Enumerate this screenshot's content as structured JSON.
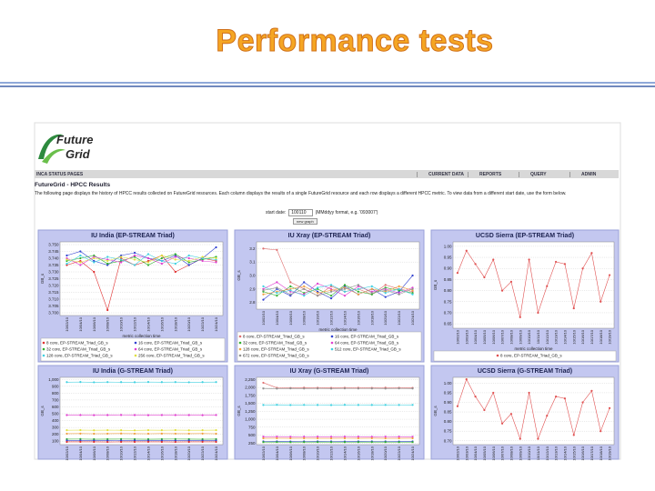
{
  "slide_title": "Performance tests",
  "logo": {
    "line1": "Future",
    "line2": "Grid"
  },
  "nav": {
    "left": "INCA STATUS PAGES",
    "items": [
      "CURRENT DATA",
      "REPORTS",
      "QUERY",
      "ADMIN"
    ]
  },
  "heading": "FutureGrid - HPCC Results",
  "description": "The following page displays the history of HPCC results collected on FutureGrid resources. Each column displays the results of a single FutureGrid resource and each row displays a different HPCC metric. To view data from a different start date, use the form below.",
  "form": {
    "label": "start date:",
    "input": "100110",
    "hint": "(MMddyy format, e.g. '093007')",
    "button": "new graph"
  },
  "chart_data": [
    {
      "type": "line",
      "title": "IU India (EP-STREAM Triad)",
      "ylabel": "GB_s",
      "xlabel": "metric collection time",
      "categories": [
        "10/02/10",
        "10/04/10",
        "10/06/10",
        "10/08/10",
        "10/10/10",
        "10/12/10",
        "10/14/10",
        "10/16/10",
        "10/18/10",
        "10/20/10",
        "10/22/10",
        "10/24/10"
      ],
      "ylim": [
        3.698,
        3.752
      ],
      "yticks": [
        {
          "value": 3.75,
          "label": "3.750"
        },
        3.745,
        {
          "value": 3.74,
          "label": "3.740"
        },
        3.735,
        {
          "value": 3.73,
          "label": "3.730"
        },
        3.725,
        {
          "value": 3.72,
          "label": "3.720"
        },
        3.715,
        {
          "value": 3.71,
          "label": "3.710"
        },
        3.705,
        {
          "value": 3.7,
          "label": "3.700"
        }
      ],
      "series": [
        {
          "name": "8 core, EP-STREAM_Triad_GB_s",
          "color": "#e03030",
          "values": [
            3.735,
            3.738,
            3.73,
            3.702,
            3.74,
            3.735,
            3.738,
            3.742,
            3.73,
            3.735,
            3.74,
            3.738
          ]
        },
        {
          "name": "16 core, EP-STREAM_Triad_GB_s",
          "color": "#3040d0",
          "values": [
            3.742,
            3.745,
            3.738,
            3.735,
            3.742,
            3.744,
            3.74,
            3.738,
            3.742,
            3.735,
            3.74,
            3.748
          ]
        },
        {
          "name": "32 core, EP-STREAM_Triad_GB_s",
          "color": "#30b030",
          "values": [
            3.738,
            3.74,
            3.742,
            3.736,
            3.738,
            3.741,
            3.735,
            3.74,
            3.743,
            3.737,
            3.739,
            3.741
          ]
        },
        {
          "name": "64 core, EP-STREAM_Triad_GB_s",
          "color": "#e040d0",
          "values": [
            3.74,
            3.735,
            3.741,
            3.739,
            3.737,
            3.742,
            3.74,
            3.736,
            3.741,
            3.74,
            3.738,
            3.737
          ]
        },
        {
          "name": "128 core, EP-STREAM_Triad_GB_s",
          "color": "#40d0e0",
          "values": [
            3.736,
            3.742,
            3.737,
            3.741,
            3.739,
            3.735,
            3.743,
            3.738,
            3.736,
            3.742,
            3.74,
            3.739
          ]
        },
        {
          "name": "256 core, EP-STREAM_Triad_GB_s",
          "color": "#e0e040",
          "values": [
            3.739,
            3.737,
            3.74,
            3.738,
            3.741,
            3.739,
            3.737,
            3.742,
            3.739,
            3.738,
            3.741,
            3.74
          ]
        }
      ]
    },
    {
      "type": "line",
      "title": "IU Xray (EP-STREAM Triad)",
      "ylabel": "GB_s",
      "xlabel": "metric collection time",
      "categories": [
        "10/02/10",
        "10/04/10",
        "10/06/10",
        "10/08/10",
        "10/10/10",
        "10/12/10",
        "10/14/10",
        "10/16/10",
        "10/18/10",
        "10/20/10",
        "10/22/10",
        "10/24/10"
      ],
      "ylim": [
        2.75,
        3.25
      ],
      "yticks": [
        3.2,
        3.1,
        {
          "value": 3,
          "label": "3.0"
        },
        2.9,
        2.8
      ],
      "series": [
        {
          "name": "8 core, EP-STREAM_Triad_GB_s",
          "color": "#e07070",
          "values": [
            3.2,
            3.19,
            2.95,
            2.9,
            2.85,
            2.92,
            2.88,
            2.9,
            2.86,
            2.93,
            2.9,
            2.88
          ]
        },
        {
          "name": "16 core, EP-STREAM_Triad_GB_s",
          "color": "#3040d0",
          "values": [
            2.82,
            2.9,
            2.85,
            2.95,
            2.88,
            2.83,
            2.92,
            2.86,
            2.9,
            2.84,
            2.88,
            3.0
          ]
        },
        {
          "name": "32 core, EP-STREAM_Triad_GB_s",
          "color": "#30b030",
          "values": [
            2.88,
            2.85,
            2.92,
            2.87,
            2.9,
            2.85,
            2.93,
            2.88,
            2.86,
            2.91,
            2.89,
            2.87
          ]
        },
        {
          "name": "64 core, EP-STREAM_Triad_GB_s",
          "color": "#e040d0",
          "values": [
            2.9,
            2.95,
            2.88,
            2.86,
            2.94,
            2.9,
            2.85,
            2.92,
            2.88,
            2.9,
            2.87,
            2.91
          ]
        },
        {
          "name": "128 core, EP-STREAM_Triad_GB_s",
          "color": "#f0a040",
          "values": [
            2.86,
            2.88,
            2.9,
            2.92,
            2.87,
            2.89,
            2.91,
            2.86,
            2.9,
            2.88,
            2.92,
            2.89
          ]
        },
        {
          "name": "512 core, EP-STREAM_Triad_GB_s",
          "color": "#40d0e0",
          "values": [
            2.92,
            2.87,
            2.89,
            2.85,
            2.91,
            2.93,
            2.88,
            2.9,
            2.92,
            2.87,
            2.9,
            2.86
          ]
        },
        {
          "name": "672 core, EP-STREAM_Triad_GB_s",
          "color": "#909090",
          "values": [
            2.89,
            2.91,
            2.86,
            2.9,
            2.85,
            2.88,
            2.9,
            2.93,
            2.87,
            2.89,
            2.86,
            2.9
          ]
        }
      ]
    },
    {
      "type": "line",
      "title": "UCSD Sierra (EP-STREAM Triad)",
      "ylabel": "GB_s",
      "xlabel": "metric collection time",
      "categories": [
        "10/02/10",
        "10/03/10",
        "10/04/10",
        "10/05/10",
        "10/06/10",
        "10/07/10",
        "10/08/10",
        "10/09/10",
        "10/10/10",
        "10/11/10",
        "10/12/10",
        "10/13/10",
        "10/14/10",
        "10/15/10",
        "10/16/10",
        "10/17/10",
        "10/18/10",
        "10/19/10"
      ],
      "ylim": [
        0.63,
        1.02
      ],
      "yticks": [
        {
          "value": 1,
          "label": "1.00"
        },
        0.95,
        {
          "value": 0.9,
          "label": "0.90"
        },
        0.85,
        {
          "value": 0.8,
          "label": "0.80"
        },
        0.75,
        {
          "value": 0.7,
          "label": "0.70"
        },
        0.65
      ],
      "series": [
        {
          "name": "8 core, EP-STREAM_Triad_GB_s",
          "color": "#e05050",
          "values": [
            0.88,
            0.98,
            0.92,
            0.86,
            0.94,
            0.8,
            0.84,
            0.68,
            0.94,
            0.7,
            0.82,
            0.93,
            0.92,
            0.72,
            0.9,
            0.97,
            0.75,
            0.87
          ]
        }
      ]
    },
    {
      "type": "line",
      "title": "IU India (G-STREAM Triad)",
      "ylabel": "GB_s",
      "categories": [
        "10/02/10",
        "10/04/10",
        "10/06/10",
        "10/08/10",
        "10/10/10",
        "10/12/10",
        "10/14/10",
        "10/16/10",
        "10/18/10",
        "10/20/10",
        "10/22/10",
        "10/24/10"
      ],
      "ylim": [
        50,
        1030
      ],
      "yticks": [
        {
          "value": 1000,
          "label": "1,000"
        },
        900,
        800,
        700,
        600,
        500,
        400,
        300,
        200,
        100
      ],
      "series": [
        {
          "color": "#40d0e0",
          "values": [
            960,
            962,
            958,
            961,
            960,
            959,
            962,
            960,
            961,
            958,
            960,
            961
          ]
        },
        {
          "color": "#e040d0",
          "values": [
            480,
            481,
            479,
            480,
            482,
            480,
            479,
            481,
            480,
            480,
            479,
            481
          ]
        },
        {
          "color": "#e0e040",
          "values": [
            260,
            262,
            259,
            261,
            260,
            258,
            261,
            260,
            262,
            259,
            260,
            261
          ]
        },
        {
          "color": "#f0a040",
          "values": [
            210,
            211,
            209,
            210,
            212,
            210,
            209,
            211,
            210,
            210,
            211,
            209
          ]
        },
        {
          "color": "#30b030",
          "values": [
            130,
            131,
            129,
            130,
            131,
            130,
            129,
            130,
            131,
            130,
            129,
            130
          ]
        },
        {
          "color": "#3040d0",
          "values": [
            110,
            111,
            110,
            109,
            110,
            111,
            110,
            110,
            109,
            111,
            110,
            110
          ]
        },
        {
          "color": "#e03030",
          "values": [
            90,
            91,
            90,
            89,
            90,
            90,
            91,
            90,
            89,
            90,
            91,
            90
          ]
        }
      ]
    },
    {
      "type": "line",
      "title": "IU Xray (G-STREAM Triad)",
      "ylabel": "GB_s",
      "categories": [
        "10/02/10",
        "10/04/10",
        "10/06/10",
        "10/08/10",
        "10/10/10",
        "10/12/10",
        "10/14/10",
        "10/16/10",
        "10/18/10",
        "10/20/10",
        "10/22/10",
        "10/24/10"
      ],
      "ylim": [
        200,
        2320
      ],
      "yticks": [
        {
          "value": 2250,
          "label": "2,250"
        },
        {
          "value": 2000,
          "label": "2,000"
        },
        {
          "value": 1750,
          "label": "1,750"
        },
        {
          "value": 1500,
          "label": "1,500"
        },
        {
          "value": 1250,
          "label": "1,250"
        },
        {
          "value": 1000,
          "label": "1,000"
        },
        750,
        500,
        250
      ],
      "series": [
        {
          "color": "#e07070",
          "values": [
            2150,
            1990,
            1985,
            1995,
            1990,
            1988,
            1992,
            1990,
            1986,
            1994,
            1990,
            1988
          ]
        },
        {
          "color": "#909090",
          "values": [
            1970,
            1965,
            1972,
            1968,
            1970,
            1966,
            1971,
            1969,
            1970,
            1967,
            1972,
            1968
          ]
        },
        {
          "color": "#40d0e0",
          "values": [
            1450,
            1455,
            1448,
            1452,
            1450,
            1447,
            1453,
            1450,
            1449,
            1451,
            1450,
            1452
          ]
        },
        {
          "color": "#e040d0",
          "values": [
            450,
            452,
            448,
            451,
            450,
            449,
            452,
            450,
            448,
            451,
            450,
            449
          ]
        },
        {
          "color": "#f0a040",
          "values": [
            400,
            402,
            399,
            401,
            400,
            398,
            401,
            400,
            402,
            399,
            400,
            401
          ]
        },
        {
          "color": "#3040d0",
          "values": [
            300,
            301,
            299,
            300,
            302,
            300,
            299,
            301,
            300,
            300,
            299,
            301
          ]
        },
        {
          "color": "#30b030",
          "values": [
            280,
            281,
            279,
            280,
            281,
            280,
            279,
            280,
            281,
            280,
            279,
            280
          ]
        }
      ]
    },
    {
      "type": "line",
      "title": "UCSD Sierra (G-STREAM Triad)",
      "ylabel": "GB_s",
      "categories": [
        "10/02/10",
        "10/03/10",
        "10/04/10",
        "10/05/10",
        "10/06/10",
        "10/07/10",
        "10/08/10",
        "10/09/10",
        "10/10/10",
        "10/11/10",
        "10/12/10",
        "10/13/10",
        "10/14/10",
        "10/15/10",
        "10/16/10",
        "10/17/10",
        "10/18/10",
        "10/19/10"
      ],
      "ylim": [
        0.68,
        1.03
      ],
      "yticks": [
        {
          "value": 1,
          "label": "1.00"
        },
        0.95,
        {
          "value": 0.9,
          "label": "0.90"
        },
        0.85,
        {
          "value": 0.8,
          "label": "0.80"
        },
        0.75,
        {
          "value": 0.7,
          "label": "0.70"
        }
      ],
      "series": [
        {
          "color": "#e05050",
          "values": [
            0.88,
            1.02,
            0.93,
            0.86,
            0.95,
            0.79,
            0.84,
            0.71,
            0.95,
            0.71,
            0.83,
            0.93,
            0.92,
            0.73,
            0.9,
            0.96,
            0.75,
            0.87
          ]
        }
      ]
    }
  ]
}
